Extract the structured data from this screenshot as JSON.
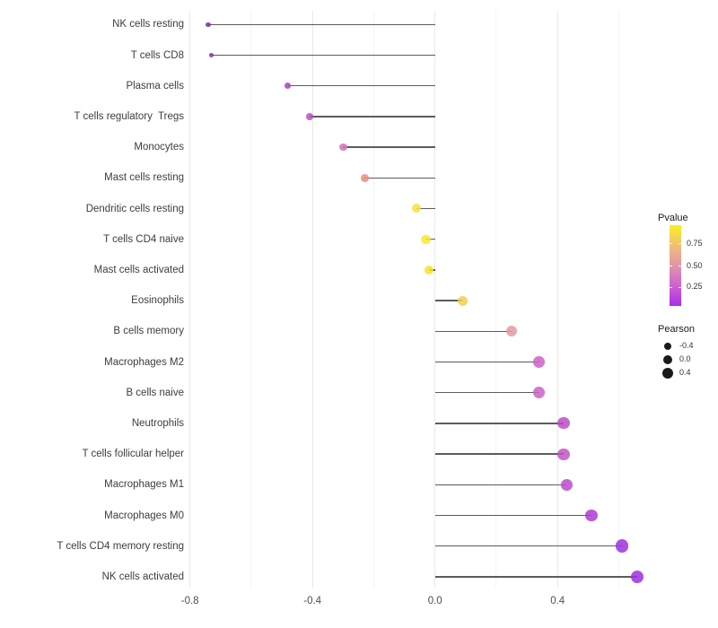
{
  "chart_data": {
    "type": "lollipop",
    "title": "",
    "xlabel": "",
    "ylabel": "",
    "xlim": [
      -0.85,
      0.75
    ],
    "grid": "vertical major+minor, light gray, white background",
    "x_axis": {
      "ticks": [
        {
          "label": "-0.8",
          "value": -0.8
        },
        {
          "label": "-0.4",
          "value": -0.4
        },
        {
          "label": "0.0",
          "value": 0.0
        },
        {
          "label": "0.4",
          "value": 0.4
        }
      ],
      "minor_gridlines": [
        -0.6,
        -0.2,
        0.2,
        0.6
      ]
    },
    "note": "dot size encodes Pearson, dot color encodes Pvalue; stem drawn from 0 to value",
    "rows": [
      {
        "label": "NK cells resting",
        "pearson": -0.74,
        "color": "#7130A9"
      },
      {
        "label": "T cells CD8",
        "pearson": -0.73,
        "color": "#7A2DB3"
      },
      {
        "label": "Plasma cells",
        "pearson": -0.48,
        "color": "#A640CB"
      },
      {
        "label": "T cells regulatory  Tregs",
        "pearson": -0.41,
        "color": "#B950C7"
      },
      {
        "label": "Monocytes",
        "pearson": -0.3,
        "color": "#D176B8"
      },
      {
        "label": "Mast cells resting",
        "pearson": -0.23,
        "color": "#E8917E"
      },
      {
        "label": "Dendritic cells resting",
        "pearson": -0.06,
        "color": "#F5E339"
      },
      {
        "label": "T cells CD4 naive",
        "pearson": -0.03,
        "color": "#F8E92C"
      },
      {
        "label": "Mast cells activated",
        "pearson": -0.02,
        "color": "#F7E22A"
      },
      {
        "label": "Eosinophils",
        "pearson": 0.09,
        "color": "#F2CE55"
      },
      {
        "label": "B cells memory",
        "pearson": 0.25,
        "color": "#E39AA3"
      },
      {
        "label": "Macrophages M2",
        "pearson": 0.34,
        "color": "#CA62C5"
      },
      {
        "label": "B cells naive",
        "pearson": 0.34,
        "color": "#CA62C5"
      },
      {
        "label": "Neutrophils",
        "pearson": 0.42,
        "color": "#BD4BC9"
      },
      {
        "label": "T cells follicular helper",
        "pearson": 0.42,
        "color": "#C156C6"
      },
      {
        "label": "Macrophages M1",
        "pearson": 0.43,
        "color": "#BC4AC9"
      },
      {
        "label": "Macrophages M0",
        "pearson": 0.51,
        "color": "#AC3BD4"
      },
      {
        "label": "T cells CD4 memory resting",
        "pearson": 0.61,
        "color": "#9C32DC"
      },
      {
        "label": "NK cells activated",
        "pearson": 0.66,
        "color": "#9E2FDF"
      }
    ],
    "color_legend": {
      "title": "Pvalue",
      "tick_labels": [
        "0.75",
        "0.50",
        "0.25"
      ],
      "gradient_top_to_bottom": [
        "#FAF021",
        "#EFBF75",
        "#E295A9",
        "#CC63CE",
        "#AD2BEB"
      ]
    },
    "size_legend": {
      "title": "Pearson",
      "items": [
        {
          "label": "-0.4",
          "diameter": 8
        },
        {
          "label": "0.0",
          "diameter": 10
        },
        {
          "label": "0.4",
          "diameter": 12
        }
      ]
    }
  }
}
